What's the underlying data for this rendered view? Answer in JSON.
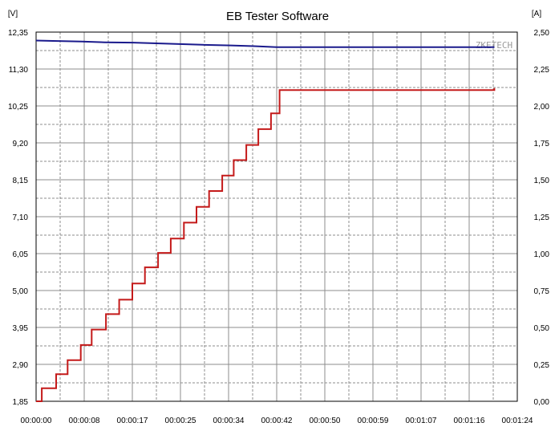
{
  "chart_data": {
    "type": "line",
    "title": "EB Tester Software",
    "watermark": "ZKETECH",
    "left_axis": {
      "unit": "[V]",
      "range": [
        1.85,
        12.35
      ],
      "ticks": [
        "12,35",
        "11,30",
        "10,25",
        "9,20",
        "8,15",
        "7,10",
        "6,05",
        "5,00",
        "3,95",
        "2,90",
        "1,85"
      ]
    },
    "right_axis": {
      "unit": "[A]",
      "range": [
        0,
        2.5
      ],
      "ticks": [
        "2,50",
        "2,25",
        "2,00",
        "1,75",
        "1,50",
        "1,25",
        "1,00",
        "0,75",
        "0,50",
        "0,25",
        "0,00"
      ]
    },
    "x_axis": {
      "range_seconds": [
        0,
        84
      ],
      "ticks": [
        "00:00:00",
        "00:00:08",
        "00:00:17",
        "00:00:25",
        "00:00:34",
        "00:00:42",
        "00:00:50",
        "00:00:59",
        "00:01:07",
        "00:01:16",
        "00:01:24"
      ]
    },
    "grid": true,
    "colors": {
      "voltage": "#1a1a8c",
      "current": "#c41a1a",
      "grid_major": "#8c8c8c",
      "grid_minor": "#8c8c8c"
    },
    "series": [
      {
        "axis": "left",
        "style": "line",
        "x": [
          0,
          3,
          8,
          12,
          17,
          21,
          25,
          29,
          34,
          38,
          42,
          50,
          59,
          67,
          76,
          80
        ],
        "values": [
          12.11,
          12.1,
          12.08,
          12.06,
          12.05,
          12.03,
          12.01,
          11.99,
          11.97,
          11.95,
          11.92,
          11.92,
          11.92,
          11.92,
          11.92,
          11.92
        ]
      },
      {
        "axis": "left",
        "style": "step",
        "x": [
          0,
          1,
          3.5,
          5.5,
          7.8,
          9.7,
          12.2,
          14.5,
          16.8,
          19,
          21.3,
          23.5,
          25.8,
          28,
          30.2,
          32.5,
          34.5,
          36.7,
          38.8,
          41,
          42.5,
          80
        ],
        "values": [
          1.85,
          2.22,
          2.62,
          3.02,
          3.45,
          3.89,
          4.33,
          4.74,
          5.2,
          5.66,
          6.07,
          6.48,
          6.93,
          7.38,
          7.83,
          8.27,
          8.71,
          9.14,
          9.59,
          10.04,
          10.7,
          10.76
        ]
      }
    ]
  }
}
